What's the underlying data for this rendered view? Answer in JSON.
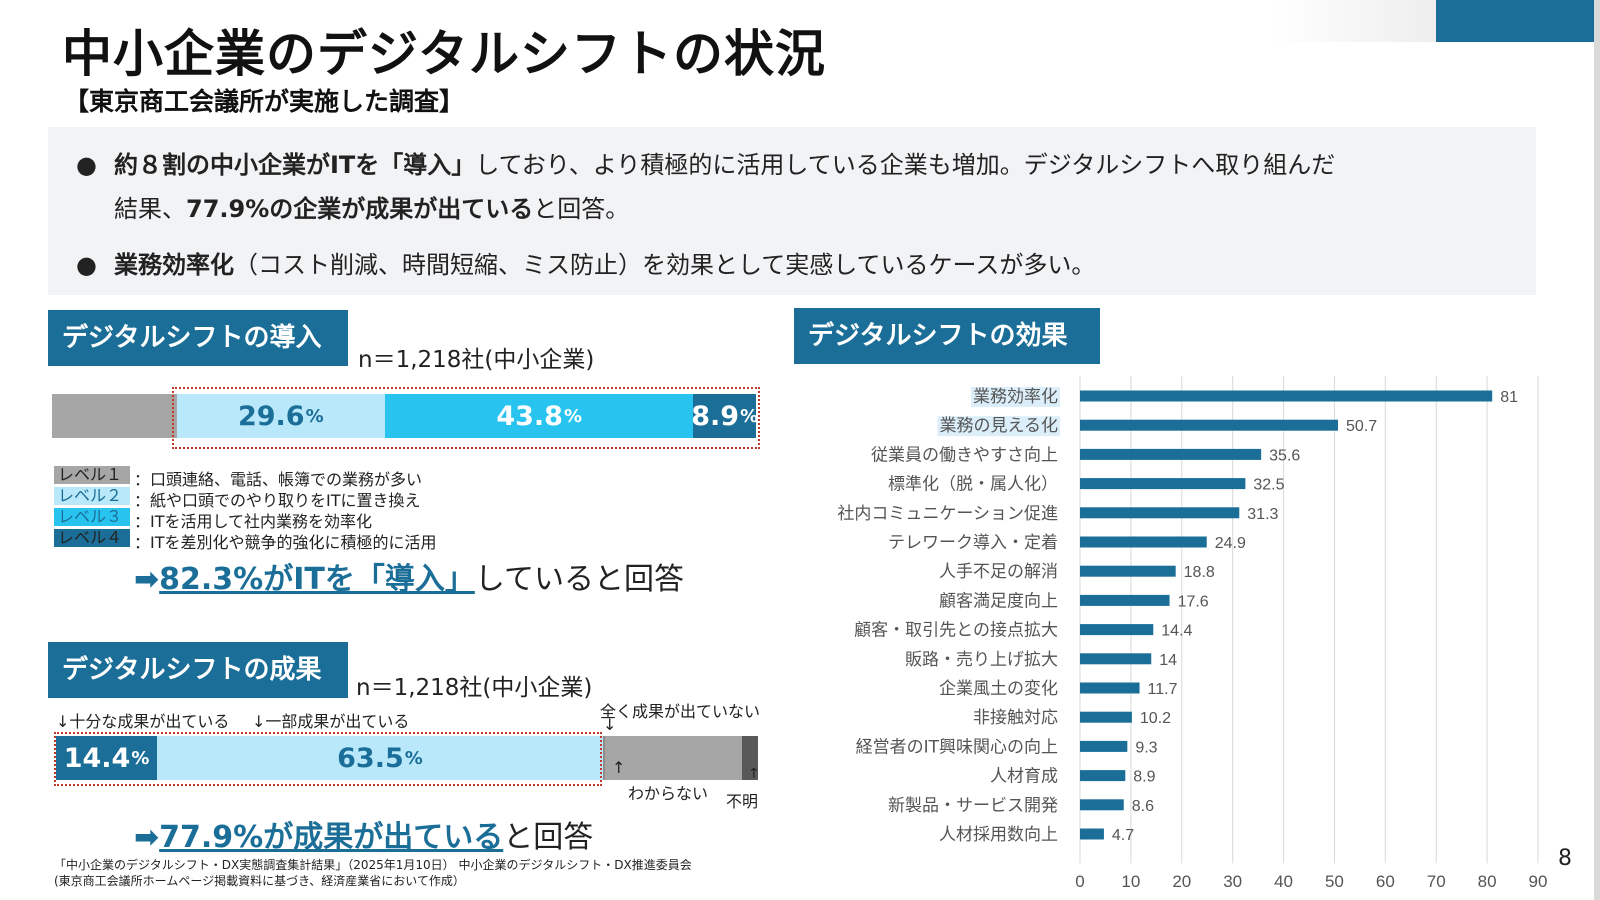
{
  "title": "中小企業のデジタルシフトの状況",
  "subtitle": "【東京商工会議所が実施した調査】",
  "summary": {
    "bullet1": {
      "bold1": "約８割の中小企業がITを「導入」",
      "text1": "しており、より積極的に活用している企業も増加。デジタルシフトへ取り組んだ",
      "text2": "結果、",
      "bold2": "77.9%の企業が成果が出ている",
      "text3": "と回答。"
    },
    "bullet2": {
      "bold": "業務効率化",
      "text": "（コスト削減、時間短縮、ミス防止）を効果として実感しているケースが多い。"
    }
  },
  "adoption": {
    "heading": "デジタルシフトの導入",
    "sample": "n＝1,218社(中小企業)",
    "bar": [
      {
        "level": "レベル１",
        "value": 17.7,
        "label": "",
        "color": "#a6a6a6"
      },
      {
        "level": "レベル２",
        "value": 29.6,
        "label": "29.6",
        "color": "#b9e8fb"
      },
      {
        "level": "レベル３",
        "value": 43.8,
        "label": "43.8",
        "color": "#29c3f0"
      },
      {
        "level": "レベル４",
        "value": 8.9,
        "label": "8.9",
        "color": "#1b6e97"
      }
    ],
    "pct_suffix": "%",
    "legend": [
      {
        "chip": "レベル１",
        "text": "：口頭連絡、電話、帳簿での業務が多い",
        "color": "#a6a6a6",
        "text_color": "#222222"
      },
      {
        "chip": "レベル２",
        "text": "：紙や口頭でのやり取りをITに置き換え",
        "color": "#b9e8fb",
        "text_color": "#1b6e97"
      },
      {
        "chip": "レベル３",
        "text": "：ITを活用して社内業務を効率化",
        "color": "#29c3f0",
        "text_color": "#1b6e97"
      },
      {
        "chip": "レベル４",
        "text": "：ITを差別化や競争的強化に積極的に活用",
        "color": "#1b6e97",
        "text_color": "#222222"
      }
    ],
    "conclusion": {
      "arrow": "➡",
      "highlight": "82.3%がITを「導入」",
      "rest": "していると回答"
    }
  },
  "results": {
    "heading": "デジタルシフトの成果",
    "sample": "n＝1,218社(中小企業)",
    "bar": [
      {
        "name": "十分な成果が出ている",
        "value": 14.4,
        "label": "14.4",
        "color": "#1b6e97"
      },
      {
        "name": "一部成果が出ている",
        "value": 63.5,
        "label": "63.5",
        "color": "#b9e8fb"
      },
      {
        "name": "全く成果が出ていない",
        "value": 0.3,
        "label": "",
        "color": "#8c8c8c"
      },
      {
        "name": "わからない",
        "value": 19.5,
        "label": "",
        "color": "#a6a6a6"
      },
      {
        "name": "不明",
        "value": 2.3,
        "label": "",
        "color": "#595959"
      }
    ],
    "ann_full": "十分な成果が出ている",
    "ann_partial": "一部成果が出ている",
    "ann_none": "全く成果が出ていない",
    "ann_unknown": "わからない",
    "ann_blank": "不明",
    "pct_suffix": "%",
    "conclusion": {
      "arrow": "➡",
      "highlight": "77.9%が成果が出ている",
      "rest": "と回答"
    }
  },
  "effects_heading": "デジタルシフトの効果",
  "chart_data": {
    "type": "bar",
    "orientation": "horizontal",
    "title": "デジタルシフトの効果",
    "categories": [
      "業務効率化",
      "業務の見える化",
      "従業員の働きやすさ向上",
      "標準化（脱・属人化）",
      "社内コミュニケーション促進",
      "テレワーク導入・定着",
      "人手不足の解消",
      "顧客満足度向上",
      "顧客・取引先との接点拡大",
      "販路・売り上げ拡大",
      "企業風土の変化",
      "非接触対応",
      "経営者のIT興味関心の向上",
      "人材育成",
      "新製品・サービス開発",
      "人材採用数向上"
    ],
    "values": [
      81,
      50.7,
      35.6,
      32.5,
      31.3,
      24.9,
      18.8,
      17.6,
      14.4,
      14,
      11.7,
      10.2,
      9.3,
      8.9,
      8.6,
      4.7
    ],
    "value_labels": [
      "81",
      "50.7",
      "35.6",
      "32.5",
      "31.3",
      "24.9",
      "18.8",
      "17.6",
      "14.4",
      "14",
      "11.7",
      "10.2",
      "9.3",
      "8.9",
      "8.6",
      "4.7"
    ],
    "highlighted": [
      "業務効率化",
      "業務の見える化"
    ],
    "xlim": [
      0,
      90
    ],
    "xticks": [
      0,
      10,
      20,
      30,
      40,
      50,
      60,
      70,
      80,
      90
    ],
    "grid": true,
    "bar_color": "#1b6e97",
    "highlight_color": "#dbeefa"
  },
  "footnote_line1": "「中小企業のデジタルシフト・DX実態調査集計結果」（2025年1月10日） 中小企業のデジタルシフト・DX推進委員会",
  "footnote_line2": "(東京商工会議所ホームページ掲載資料に基づき、経済産業省において作成）",
  "page_number": "8"
}
